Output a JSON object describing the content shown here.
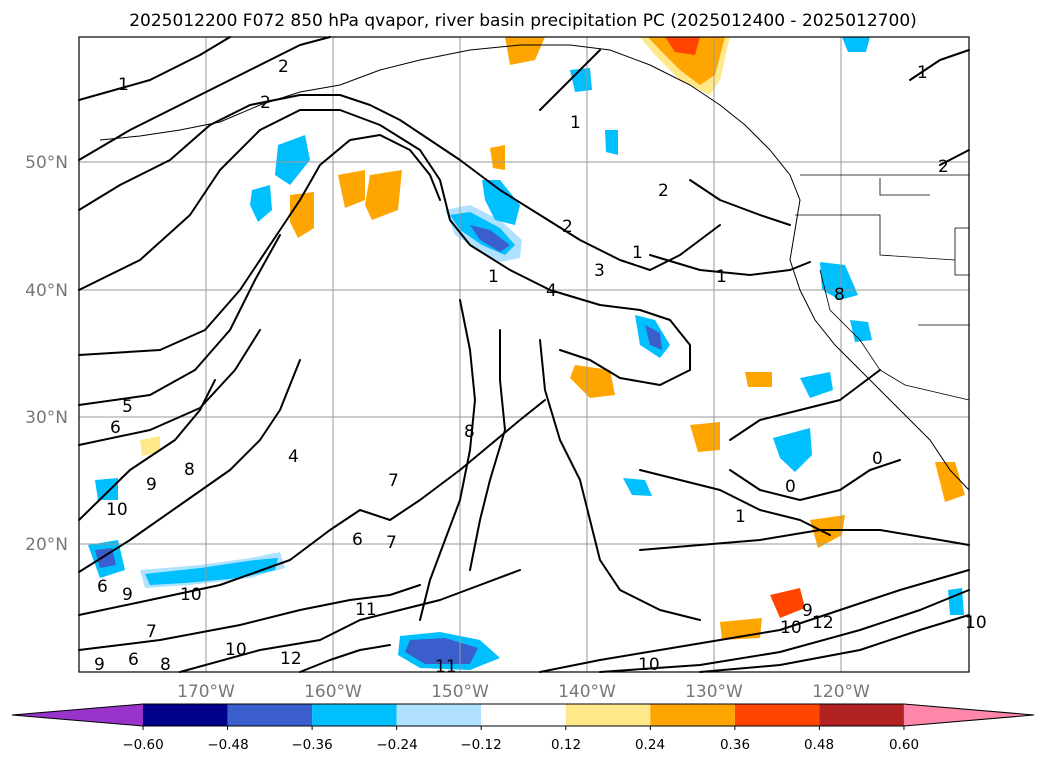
{
  "title": "2025012200 F072 850 hPa qvapor, river basin precipitation PC (2025012400 - 2025012700)",
  "lat_labels": [
    "50°N",
    "40°N",
    "30°N",
    "20°N"
  ],
  "lon_labels": [
    "170°W",
    "160°W",
    "150°W",
    "140°W",
    "130°W",
    "120°W"
  ],
  "colorbar": {
    "ticks": [
      "−0.60",
      "−0.48",
      "−0.36",
      "−0.24",
      "−0.12",
      "0.12",
      "0.24",
      "0.36",
      "0.48",
      "0.60"
    ],
    "bins": [
      {
        "color": "#9933cc"
      },
      {
        "color": "#00008b"
      },
      {
        "color": "#3a5fcd"
      },
      {
        "color": "#00bfff"
      },
      {
        "color": "#b0e2ff"
      },
      {
        "color": "#ffffff"
      },
      {
        "color": "#ffe98a"
      },
      {
        "color": "#ffa500"
      },
      {
        "color": "#ff4500"
      },
      {
        "color": "#b22222"
      },
      {
        "color": "#ff88aa"
      }
    ]
  },
  "contour_labels": [
    "1",
    "2",
    "2",
    "1",
    "1",
    "2",
    "2",
    "3",
    "4",
    "1",
    "1",
    "5",
    "6",
    "4",
    "8",
    "8",
    "9",
    "10",
    "6",
    "6",
    "9",
    "10",
    "7",
    "11",
    "10",
    "12",
    "11",
    "10",
    "9",
    "10",
    "12",
    "10",
    "2",
    "1",
    "0",
    "0",
    "9",
    "6",
    "8",
    "1",
    "7",
    "7",
    "8"
  ]
}
